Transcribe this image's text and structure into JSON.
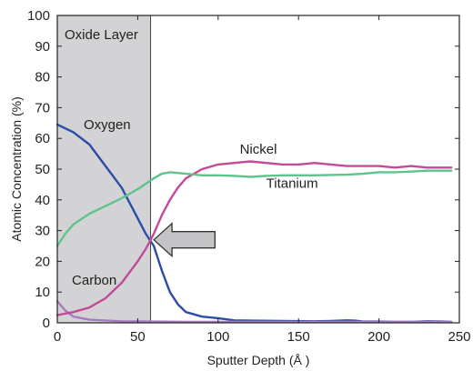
{
  "chart_data": {
    "type": "line",
    "title": "",
    "xlabel": "Sputter Depth (Å )",
    "ylabel": "Atomic Concentration (%)",
    "xlim": [
      0,
      250
    ],
    "ylim": [
      0,
      100
    ],
    "xticks": [
      "0",
      "50",
      "100",
      "150",
      "200",
      "250"
    ],
    "yticks": [
      "0",
      "10",
      "20",
      "30",
      "40",
      "50",
      "60",
      "70",
      "80",
      "90",
      "100"
    ],
    "grid": false,
    "legend": "none",
    "shaded_region": {
      "label": "Oxide Layer",
      "x_start": 0,
      "x_end": 58,
      "color": "#d3d3d5"
    },
    "arrow": {
      "direction": "left",
      "x_from": 98,
      "x_to": 60,
      "y": 27
    },
    "series": [
      {
        "name": "Oxygen",
        "color": "#2c4da6",
        "points": [
          [
            0,
            64.5
          ],
          [
            10,
            62
          ],
          [
            20,
            58
          ],
          [
            30,
            51
          ],
          [
            40,
            44
          ],
          [
            50,
            34
          ],
          [
            55,
            29
          ],
          [
            60,
            25
          ],
          [
            65,
            17
          ],
          [
            70,
            10
          ],
          [
            75,
            6
          ],
          [
            80,
            3.5
          ],
          [
            90,
            2
          ],
          [
            100,
            1.5
          ],
          [
            110,
            0.8
          ],
          [
            120,
            0.7
          ],
          [
            140,
            0.6
          ],
          [
            160,
            0.5
          ],
          [
            170,
            0.6
          ],
          [
            180,
            0.8
          ],
          [
            185,
            0.7
          ],
          [
            190,
            0.4
          ],
          [
            200,
            0.4
          ],
          [
            210,
            0.3
          ],
          [
            220,
            0.3
          ],
          [
            230,
            0.5
          ],
          [
            240,
            0.4
          ],
          [
            245,
            0.3
          ]
        ]
      },
      {
        "name": "Carbon",
        "color": "#a77bc0",
        "points": [
          [
            0,
            7
          ],
          [
            5,
            4
          ],
          [
            10,
            2
          ],
          [
            20,
            1
          ],
          [
            40,
            0.5
          ],
          [
            60,
            0.4
          ],
          [
            80,
            0.3
          ],
          [
            120,
            0.3
          ],
          [
            160,
            0.3
          ],
          [
            200,
            0.3
          ],
          [
            245,
            0.3
          ]
        ]
      },
      {
        "name": "Nickel",
        "color": "#c24b98",
        "points": [
          [
            0,
            2.5
          ],
          [
            10,
            3.5
          ],
          [
            20,
            5
          ],
          [
            30,
            8
          ],
          [
            40,
            13
          ],
          [
            50,
            20
          ],
          [
            55,
            24
          ],
          [
            60,
            29
          ],
          [
            65,
            35
          ],
          [
            70,
            40
          ],
          [
            75,
            44
          ],
          [
            80,
            47
          ],
          [
            90,
            50
          ],
          [
            100,
            51.5
          ],
          [
            110,
            52
          ],
          [
            120,
            52.5
          ],
          [
            130,
            52
          ],
          [
            140,
            51.5
          ],
          [
            150,
            51.5
          ],
          [
            160,
            52
          ],
          [
            170,
            51.5
          ],
          [
            180,
            51
          ],
          [
            190,
            51
          ],
          [
            200,
            51
          ],
          [
            210,
            50.5
          ],
          [
            220,
            51
          ],
          [
            230,
            50.5
          ],
          [
            240,
            50.5
          ],
          [
            245,
            50.5
          ]
        ]
      },
      {
        "name": "Titanium",
        "color": "#5cc48c",
        "points": [
          [
            0,
            25
          ],
          [
            5,
            29
          ],
          [
            10,
            32
          ],
          [
            20,
            35.5
          ],
          [
            30,
            38
          ],
          [
            40,
            40.5
          ],
          [
            50,
            43.5
          ],
          [
            60,
            47
          ],
          [
            65,
            48.5
          ],
          [
            70,
            49
          ],
          [
            80,
            48.5
          ],
          [
            90,
            48
          ],
          [
            100,
            48
          ],
          [
            110,
            47.8
          ],
          [
            120,
            47.5
          ],
          [
            130,
            47.8
          ],
          [
            140,
            48
          ],
          [
            160,
            48
          ],
          [
            180,
            48.2
          ],
          [
            190,
            48.5
          ],
          [
            200,
            49
          ],
          [
            210,
            49
          ],
          [
            220,
            49.2
          ],
          [
            230,
            49.5
          ],
          [
            245,
            49.5
          ]
        ]
      }
    ],
    "annotations": [
      {
        "text": "Oxygen",
        "x": 31,
        "y": 63
      },
      {
        "text": "Nickel",
        "x": 125,
        "y": 55
      },
      {
        "text": "Titanium",
        "x": 146,
        "y": 44
      },
      {
        "text": "Carbon",
        "x": 23,
        "y": 12.5
      }
    ]
  }
}
